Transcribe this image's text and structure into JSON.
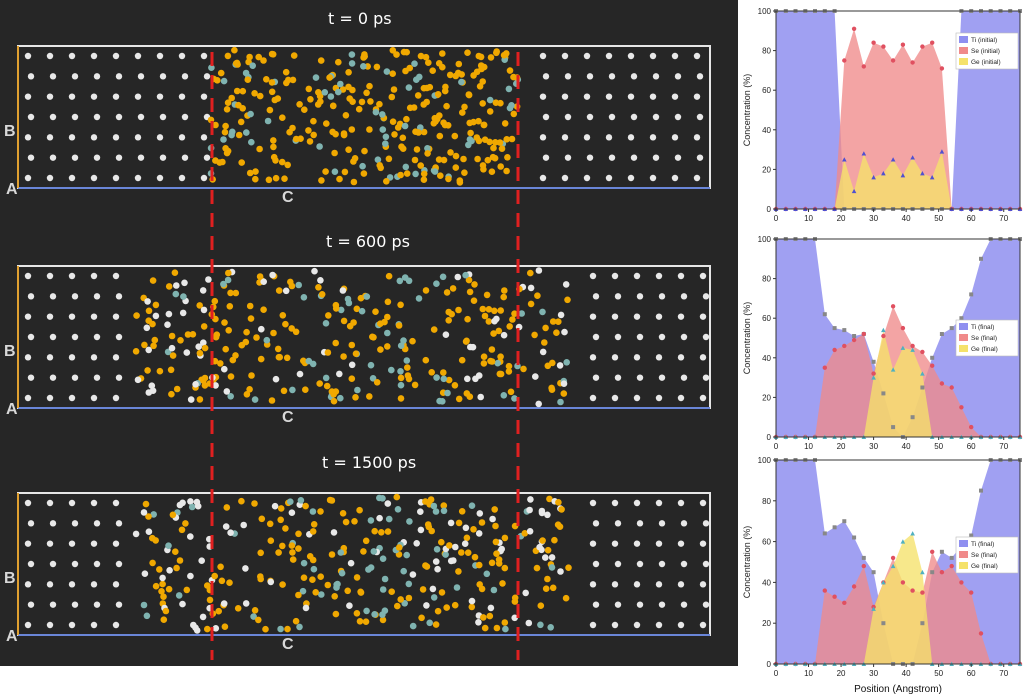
{
  "simulation": {
    "time_labels": [
      "t = 0 ps",
      "t = 600 ps",
      "t = 1500 ps"
    ],
    "axis_labels": {
      "a": "A",
      "b": "B",
      "c": "C"
    },
    "colors": {
      "ti": "#e8e8e8",
      "se": "#f0a800",
      "ge": "#7fb3b0",
      "dash": "#e02020",
      "box": "#e6e6e6",
      "axis_a": "#6a86d8",
      "axis_b": "#e0a030"
    }
  },
  "chart_data": [
    {
      "type": "area",
      "x": [
        0,
        3,
        6,
        9,
        12,
        15,
        18,
        21,
        24,
        27,
        30,
        33,
        36,
        39,
        42,
        45,
        48,
        51,
        54,
        57,
        60,
        63,
        66,
        69,
        72,
        75
      ],
      "xlim": [
        0,
        75
      ],
      "ylim": [
        0,
        100
      ],
      "xticks": [
        0,
        10,
        20,
        30,
        40,
        50,
        60,
        70
      ],
      "yticks": [
        0,
        20,
        40,
        60,
        80,
        100
      ],
      "xlabel": "",
      "ylabel": "Concentration (%)",
      "legend_position": "right",
      "series": [
        {
          "name": "Ti (initial)",
          "color": "#8f8ff0",
          "marker_color": "#888888",
          "values": [
            100,
            100,
            100,
            100,
            100,
            100,
            100,
            0,
            0,
            0,
            0,
            0,
            0,
            0,
            0,
            0,
            0,
            0,
            0,
            100,
            100,
            100,
            100,
            100,
            100,
            100
          ]
        },
        {
          "name": "Se (initial)",
          "color": "#f08a8a",
          "marker_color": "#e05060",
          "values": [
            0,
            0,
            0,
            0,
            0,
            0,
            0,
            75,
            91,
            72,
            84,
            82,
            75,
            83,
            74,
            82,
            84,
            71,
            0,
            0,
            0,
            0,
            0,
            0,
            0,
            0
          ]
        },
        {
          "name": "Ge (initial)",
          "color": "#f5e26a",
          "marker_color": "#5050d0",
          "values": [
            0,
            0,
            0,
            0,
            0,
            0,
            0,
            25,
            9,
            28,
            16,
            18,
            25,
            17,
            26,
            18,
            16,
            29,
            0,
            0,
            0,
            0,
            0,
            0,
            0,
            0
          ]
        }
      ]
    },
    {
      "type": "area",
      "x": [
        0,
        3,
        6,
        9,
        12,
        15,
        18,
        21,
        24,
        27,
        30,
        33,
        36,
        39,
        42,
        45,
        48,
        51,
        54,
        57,
        60,
        63,
        66,
        69,
        72,
        75
      ],
      "xlim": [
        0,
        75
      ],
      "ylim": [
        0,
        100
      ],
      "xticks": [
        0,
        10,
        20,
        30,
        40,
        50,
        60,
        70
      ],
      "yticks": [
        0,
        20,
        40,
        60,
        80,
        100
      ],
      "xlabel": "",
      "ylabel": "Concentration (%)",
      "legend_position": "right",
      "series": [
        {
          "name": "Ti (final)",
          "color": "#8f8ff0",
          "marker_color": "#888888",
          "values": [
            100,
            100,
            100,
            100,
            100,
            62,
            55,
            54,
            51,
            52,
            38,
            22,
            5,
            0,
            10,
            25,
            40,
            52,
            55,
            60,
            72,
            90,
            100,
            100,
            100,
            100
          ]
        },
        {
          "name": "Se (final)",
          "color": "#f08a8a",
          "marker_color": "#e05060",
          "values": [
            0,
            0,
            0,
            0,
            0,
            35,
            44,
            46,
            49,
            52,
            32,
            51,
            66,
            55,
            46,
            43,
            36,
            27,
            25,
            15,
            5,
            0,
            0,
            0,
            0,
            0
          ]
        },
        {
          "name": "Ge (final)",
          "color": "#f5e26a",
          "marker_color": "#50b0c0",
          "values": [
            0,
            0,
            0,
            0,
            0,
            0,
            0,
            0,
            0,
            0,
            30,
            54,
            34,
            45,
            44,
            32,
            0,
            0,
            0,
            0,
            0,
            0,
            0,
            0,
            0,
            0
          ]
        }
      ]
    },
    {
      "type": "area",
      "x": [
        0,
        3,
        6,
        9,
        12,
        15,
        18,
        21,
        24,
        27,
        30,
        33,
        36,
        39,
        42,
        45,
        48,
        51,
        54,
        57,
        60,
        63,
        66,
        69,
        72,
        75
      ],
      "xlim": [
        0,
        75
      ],
      "ylim": [
        0,
        100
      ],
      "xticks": [
        0,
        10,
        20,
        30,
        40,
        50,
        60,
        70
      ],
      "yticks": [
        0,
        20,
        40,
        60,
        80,
        100
      ],
      "xlabel": "Position (Angstrom)",
      "ylabel": "Concentration (%)",
      "legend_position": "right",
      "series": [
        {
          "name": "Ti (final)",
          "color": "#8f8ff0",
          "marker_color": "#888888",
          "values": [
            100,
            100,
            100,
            100,
            100,
            64,
            67,
            70,
            62,
            52,
            45,
            20,
            0,
            0,
            0,
            20,
            45,
            55,
            52,
            58,
            63,
            85,
            100,
            100,
            100,
            100
          ]
        },
        {
          "name": "Se (final)",
          "color": "#f08a8a",
          "marker_color": "#e05060",
          "values": [
            0,
            0,
            0,
            0,
            0,
            36,
            33,
            30,
            38,
            48,
            28,
            40,
            52,
            40,
            36,
            35,
            55,
            45,
            48,
            40,
            35,
            15,
            0,
            0,
            0,
            0
          ]
        },
        {
          "name": "Ge (final)",
          "color": "#f5e26a",
          "marker_color": "#50b0c0",
          "values": [
            0,
            0,
            0,
            0,
            0,
            0,
            0,
            0,
            0,
            0,
            27,
            40,
            48,
            60,
            64,
            45,
            0,
            0,
            0,
            0,
            0,
            0,
            0,
            0,
            0,
            0
          ]
        }
      ]
    }
  ]
}
